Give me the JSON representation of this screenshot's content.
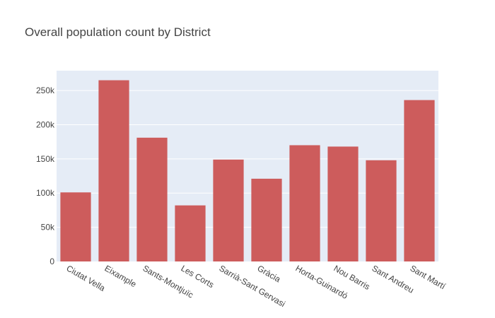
{
  "chart_data": {
    "type": "bar",
    "title": "Overall population count by District",
    "xlabel": "",
    "ylabel": "",
    "categories": [
      "Ciutat Vella",
      "Eixample",
      "Sants-Montjuïc",
      "Les Corts",
      "Sarrià-Sant Gervasi",
      "Gràcia",
      "Horta-Guinardó",
      "Nou Barris",
      "Sant Andreu",
      "Sant Martí"
    ],
    "values": [
      101000,
      265000,
      181000,
      82000,
      149000,
      121000,
      170000,
      168000,
      148000,
      236000
    ],
    "ylim": [
      0,
      279000
    ],
    "yticks": [
      0,
      50000,
      100000,
      150000,
      200000,
      250000
    ],
    "ytick_labels": [
      "0",
      "50k",
      "100k",
      "150k",
      "200k",
      "250k"
    ],
    "grid": true,
    "bar_color": "#cd5c5c",
    "plot_background": "#e5ecf6"
  }
}
